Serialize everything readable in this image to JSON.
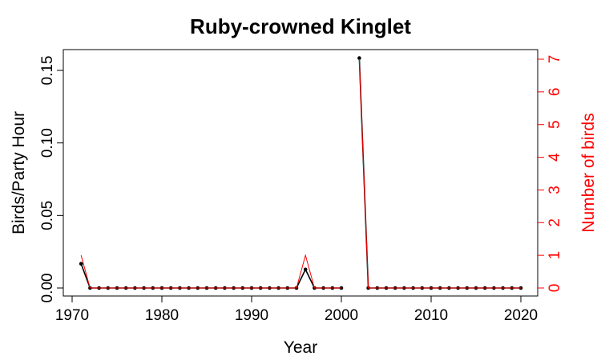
{
  "chart_data": {
    "type": "line",
    "title": "Ruby-crowned Kinglet",
    "xlabel": "Year",
    "ylabel": "Birds/Party Hour",
    "y2label": "Number of birds",
    "xlim": [
      1970,
      2020
    ],
    "ylim": [
      0,
      0.15
    ],
    "y2lim": [
      0,
      7
    ],
    "x_ticks": [
      "1970",
      "1980",
      "1990",
      "2000",
      "2010",
      "2020"
    ],
    "y_ticks": [
      "0.00",
      "0.05",
      "0.10",
      "0.15"
    ],
    "y2_ticks": [
      "0",
      "1",
      "2",
      "3",
      "4",
      "5",
      "6",
      "7"
    ],
    "colors": {
      "primary": "#000000",
      "secondary": "#ff0000"
    },
    "x": [
      1971,
      1972,
      1973,
      1974,
      1975,
      1976,
      1977,
      1978,
      1979,
      1980,
      1981,
      1982,
      1983,
      1984,
      1985,
      1986,
      1987,
      1988,
      1989,
      1990,
      1991,
      1992,
      1993,
      1994,
      1995,
      1996,
      1997,
      1998,
      1999,
      2000,
      2001,
      2002,
      2003,
      2004,
      2005,
      2006,
      2007,
      2008,
      2009,
      2010,
      2011,
      2012,
      2013,
      2014,
      2015,
      2016,
      2017,
      2018,
      2019,
      2020
    ],
    "series": [
      {
        "axis": "left",
        "values": [
          0.0167,
          0,
          0,
          0,
          0,
          0,
          0,
          0,
          0,
          0,
          0,
          0,
          0,
          0,
          0,
          0,
          0,
          0,
          0,
          0,
          0,
          0,
          0,
          0,
          0,
          0.0128,
          0,
          0,
          0,
          0,
          null,
          0.1585,
          0,
          0,
          0,
          0,
          0,
          0,
          0,
          0,
          0,
          0,
          0,
          0,
          0,
          0,
          0,
          0,
          0,
          0
        ]
      },
      {
        "axis": "right",
        "values": [
          1,
          0,
          0,
          0,
          0,
          0,
          0,
          0,
          0,
          0,
          0,
          0,
          0,
          0,
          0,
          0,
          0,
          0,
          0,
          0,
          0,
          0,
          0,
          0,
          0,
          1,
          0,
          0,
          0,
          0,
          null,
          7,
          0,
          0,
          0,
          0,
          0,
          0,
          0,
          0,
          0,
          0,
          0,
          0,
          0,
          0,
          0,
          0,
          0,
          0
        ]
      }
    ]
  }
}
